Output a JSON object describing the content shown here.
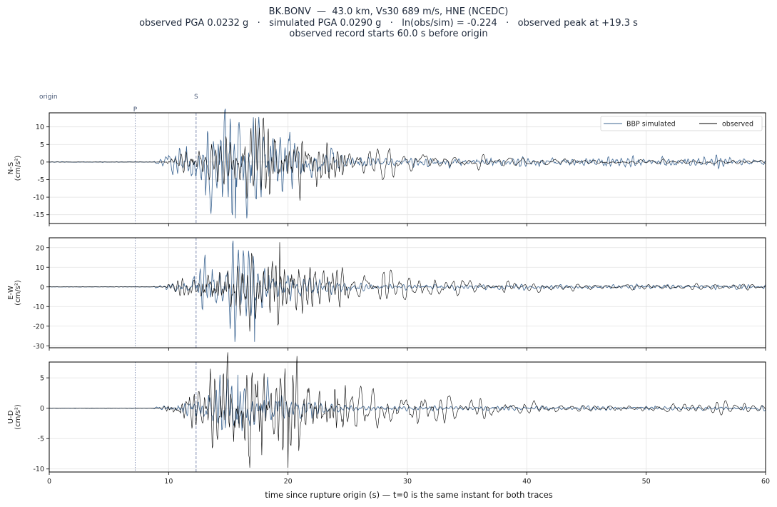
{
  "header": {
    "line1": "BK.BONV  —  43.0 km, Vs30 689 m/s, HNE (NCEDC)",
    "line2": "observed PGA 0.0232 g   ·   simulated PGA 0.0290 g   ·   ln(obs/sim) = -0.224   ·   observed peak at +19.3 s",
    "line3": "observed record starts 60.0 s before origin"
  },
  "phases": {
    "origin": "origin",
    "p": "P",
    "s": "S",
    "p_time": 7.2,
    "s_time": 12.3
  },
  "legend": {
    "simulated": "BBP simulated",
    "observed": "observed",
    "placement": "top-right"
  },
  "colors": {
    "simulated": "#3b6491",
    "observed": "#000000",
    "phase_line": "#7f8db0",
    "grid": "#e2e2e2"
  },
  "chart_data": [
    {
      "type": "line",
      "component": "N-S",
      "ylabel_line1": "N-S",
      "ylabel_line2": "(cm/s²)",
      "xlim": [
        0,
        60
      ],
      "ylim": [
        -17.5,
        14
      ],
      "yticks": [
        10,
        5,
        0,
        -5,
        -10,
        -15
      ],
      "grid": true,
      "obs_peak": 12.5,
      "obs_peak_t": 17.3,
      "sim_peak": -16,
      "sim_peak_t": 15.6,
      "series": [
        {
          "name": "BBP simulated"
        },
        {
          "name": "observed"
        }
      ]
    },
    {
      "type": "line",
      "component": "E-W",
      "ylabel_line1": "E-W",
      "ylabel_line2": "(cm/s²)",
      "xlim": [
        0,
        60
      ],
      "ylim": [
        -31,
        25
      ],
      "yticks": [
        20,
        10,
        0,
        -10,
        -20,
        -30
      ],
      "grid": true,
      "obs_peak": 22.7,
      "obs_peak_t": 19.3,
      "sim_peak": -28,
      "sim_peak_t": 17.2,
      "series": [
        {
          "name": "BBP simulated"
        },
        {
          "name": "observed"
        }
      ]
    },
    {
      "type": "line",
      "component": "U-D",
      "ylabel_line1": "U-D",
      "ylabel_line2": "(cm/s²)",
      "xlim": [
        0,
        60
      ],
      "ylim": [
        -10.5,
        7.6
      ],
      "yticks": [
        5,
        0,
        -5,
        -10
      ],
      "grid": true,
      "obs_peak": -9.8,
      "obs_peak_t": 20.0,
      "sim_peak": 5.5,
      "sim_peak_t": 15.8,
      "series": [
        {
          "name": "BBP simulated"
        },
        {
          "name": "observed"
        }
      ]
    }
  ],
  "xaxis": {
    "ticks": [
      0,
      10,
      20,
      30,
      40,
      50,
      60
    ],
    "label": "time since rupture origin (s)   —   t=0 is the same instant for both traces"
  }
}
